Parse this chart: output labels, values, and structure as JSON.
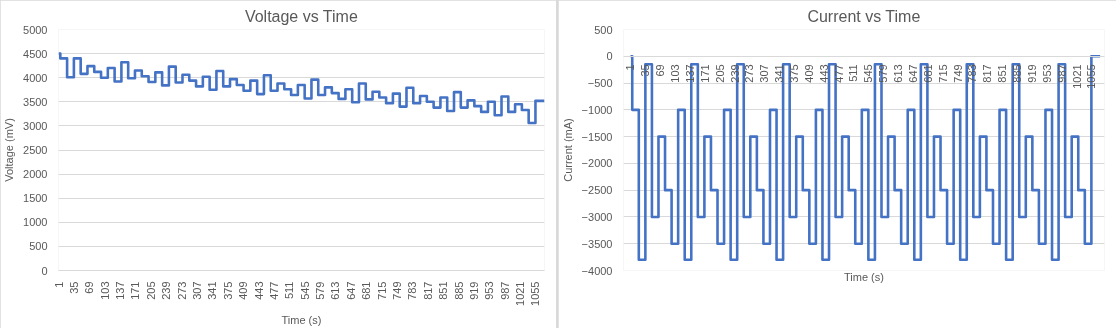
{
  "chart_data": [
    {
      "type": "step",
      "title": "Voltage vs Time",
      "xlabel": "Time (s)",
      "ylabel": "Voltage (mV)",
      "color": "#4472c4",
      "grid": "y",
      "x": [
        1,
        5,
        20,
        35,
        50,
        65,
        80,
        95,
        110,
        125,
        140,
        155,
        170,
        185,
        200,
        215,
        230,
        245,
        260,
        275,
        290,
        305,
        320,
        335,
        350,
        365,
        380,
        395,
        410,
        425,
        440,
        455,
        470,
        485,
        500,
        515,
        530,
        545,
        560,
        575,
        590,
        605,
        620,
        635,
        650,
        665,
        680,
        695,
        710,
        725,
        740,
        755,
        770,
        785,
        800,
        815,
        830,
        845,
        860,
        875,
        890,
        905,
        920,
        935,
        950,
        965,
        980,
        995,
        1010,
        1025,
        1040,
        1055,
        1075
      ],
      "values": [
        4500,
        4400,
        4010,
        4400,
        4080,
        4240,
        4120,
        4000,
        4200,
        3920,
        4320,
        3990,
        4150,
        4030,
        3910,
        4110,
        3840,
        4230,
        3900,
        4060,
        3940,
        3820,
        4020,
        3750,
        4140,
        3820,
        3970,
        3850,
        3730,
        3940,
        3660,
        4050,
        3730,
        3880,
        3760,
        3640,
        3850,
        3570,
        3960,
        3640,
        3800,
        3680,
        3560,
        3760,
        3490,
        3880,
        3550,
        3710,
        3590,
        3470,
        3670,
        3400,
        3790,
        3470,
        3620,
        3500,
        3380,
        3590,
        3310,
        3700,
        3380,
        3530,
        3410,
        3290,
        3500,
        3220,
        3610,
        3290,
        3450,
        3330,
        3060,
        3520,
        3520
      ],
      "xlim": [
        1,
        1075
      ],
      "xticks": [
        1,
        35,
        69,
        103,
        137,
        171,
        205,
        239,
        273,
        307,
        341,
        375,
        409,
        443,
        477,
        511,
        545,
        579,
        613,
        647,
        681,
        715,
        749,
        783,
        817,
        851,
        885,
        919,
        953,
        987,
        1021,
        1055
      ],
      "ylim": [
        0,
        5000
      ],
      "yticks": [
        0,
        500,
        1000,
        1500,
        2000,
        2500,
        3000,
        3500,
        4000,
        4500,
        5000
      ]
    },
    {
      "type": "step",
      "title": "Current vs Time",
      "xlabel": "Time (s)",
      "ylabel": "Current (mA)",
      "color": "#4472c4",
      "grid": "y",
      "x": [
        1,
        5,
        20,
        35,
        50,
        65,
        80,
        95,
        110,
        125,
        140,
        155,
        170,
        185,
        200,
        215,
        230,
        245,
        260,
        275,
        290,
        305,
        320,
        335,
        350,
        365,
        380,
        395,
        410,
        425,
        440,
        455,
        470,
        485,
        500,
        515,
        530,
        545,
        560,
        575,
        590,
        605,
        620,
        635,
        650,
        665,
        680,
        695,
        710,
        725,
        740,
        755,
        770,
        785,
        800,
        815,
        830,
        845,
        860,
        875,
        890,
        905,
        920,
        935,
        950,
        965,
        980,
        995,
        1010,
        1025,
        1040,
        1055,
        1075
      ],
      "values": [
        0,
        -1000,
        -3800,
        -150,
        -3000,
        -1500,
        -2500,
        -3500,
        -1000,
        -3800,
        -150,
        -3000,
        -1500,
        -2500,
        -3500,
        -1000,
        -3800,
        -150,
        -3000,
        -1500,
        -2500,
        -3500,
        -1000,
        -3800,
        -150,
        -3000,
        -1500,
        -2500,
        -3500,
        -1000,
        -3800,
        -150,
        -3000,
        -1500,
        -2500,
        -3500,
        -1000,
        -3800,
        -150,
        -3000,
        -1500,
        -2500,
        -3500,
        -1000,
        -3800,
        -150,
        -3000,
        -1500,
        -2500,
        -3500,
        -1000,
        -3800,
        -150,
        -3000,
        -1500,
        -2500,
        -3500,
        -1000,
        -3800,
        -150,
        -3000,
        -1500,
        -2500,
        -3500,
        -1000,
        -3800,
        -150,
        -3000,
        -1500,
        -2500,
        -3500,
        0,
        0
      ],
      "xlim": [
        -15,
        1085
      ],
      "xticks": [
        1,
        35,
        69,
        103,
        137,
        171,
        205,
        239,
        273,
        307,
        341,
        375,
        409,
        443,
        477,
        511,
        545,
        579,
        613,
        647,
        681,
        715,
        749,
        783,
        817,
        851,
        885,
        919,
        953,
        987,
        1021,
        1055
      ],
      "ylim": [
        -4000,
        500
      ],
      "yticks": [
        -4000,
        -3500,
        -3000,
        -2500,
        -2000,
        -1500,
        -1000,
        -500,
        0,
        500
      ]
    }
  ]
}
